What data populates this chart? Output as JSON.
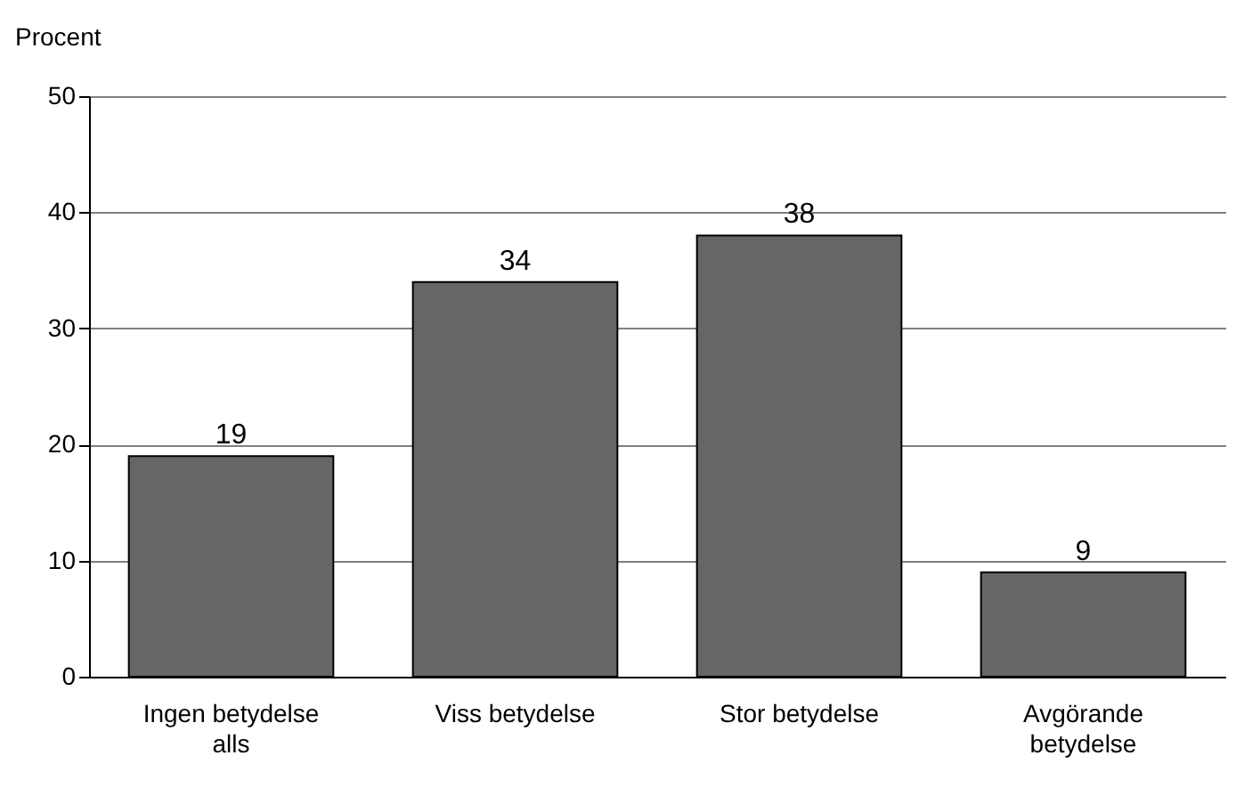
{
  "chart_data": {
    "type": "bar",
    "ylabel": "Procent",
    "categories": [
      "Ingen betydelse alls",
      "Viss betydelse",
      "Stor betydelse",
      "Avgörande betydelse"
    ],
    "values": [
      19,
      34,
      38,
      9
    ],
    "color": "#666666",
    "ylim": [
      0,
      50
    ],
    "yticks": [
      0,
      10,
      20,
      30,
      40,
      50
    ],
    "grid": "y",
    "data_labels": true
  }
}
